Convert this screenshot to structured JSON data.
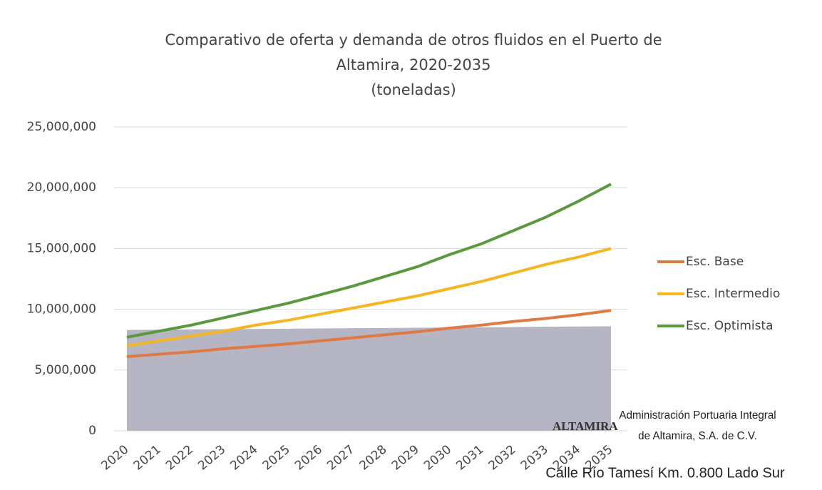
{
  "chart_data": {
    "type": "line",
    "title": [
      "Comparativo de oferta y demanda de otros fluidos en el Puerto de",
      "Altamira, 2020-2035"
    ],
    "subtitle": "(toneladas)",
    "categories": [
      "2020",
      "2021",
      "2022",
      "2023",
      "2024",
      "2025",
      "2026",
      "2027",
      "2028",
      "2029",
      "2030",
      "2031",
      "2032",
      "2033",
      "2034",
      "2035"
    ],
    "series": [
      {
        "color": "#b5b5c4",
        "kind": "area",
        "values": [
          8300000,
          8320000,
          8340000,
          8360000,
          8380000,
          8400000,
          8420000,
          8440000,
          8460000,
          8480000,
          8500000,
          8520000,
          8540000,
          8560000,
          8580000,
          8600000
        ]
      },
      {
        "name": "Esc. Base",
        "color": "#e07a45",
        "values": [
          6100000,
          6300000,
          6500000,
          6750000,
          6950000,
          7150000,
          7400000,
          7650000,
          7900000,
          8150000,
          8450000,
          8700000,
          9000000,
          9250000,
          9550000,
          9900000
        ]
      },
      {
        "name": "Esc. Intermedio",
        "color": "#f4b622",
        "values": [
          7000000,
          7400000,
          7800000,
          8200000,
          8700000,
          9100000,
          9600000,
          10100000,
          10600000,
          11100000,
          11700000,
          12300000,
          13000000,
          13700000,
          14300000,
          15000000
        ]
      },
      {
        "name": "Esc. Optimista",
        "color": "#5a9a3f",
        "values": [
          7700000,
          8200000,
          8700000,
          9300000,
          9900000,
          10500000,
          11200000,
          11900000,
          12700000,
          13500000,
          14500000,
          15400000,
          16500000,
          17600000,
          18900000,
          20300000
        ]
      }
    ],
    "ylim": [
      0,
      25000000
    ],
    "yticks": [
      0,
      {
        "value": 5000000,
        "label": "5,000,000"
      },
      {
        "value": 10000000,
        "label": "10,000,000"
      },
      {
        "value": 15000000,
        "label": "15,000,000"
      },
      {
        "value": 20000000,
        "label": "20,000,000"
      },
      {
        "value": 25000000,
        "label": "25,000,000"
      }
    ],
    "grid": true,
    "legend": "right",
    "annotations": [
      "ALTAMIRA",
      "Administración Portuaria Integral",
      "de Altamira, S.A. de C.V.",
      "Calle Río Tamesí Km. 0.800 Lado Sur"
    ]
  }
}
